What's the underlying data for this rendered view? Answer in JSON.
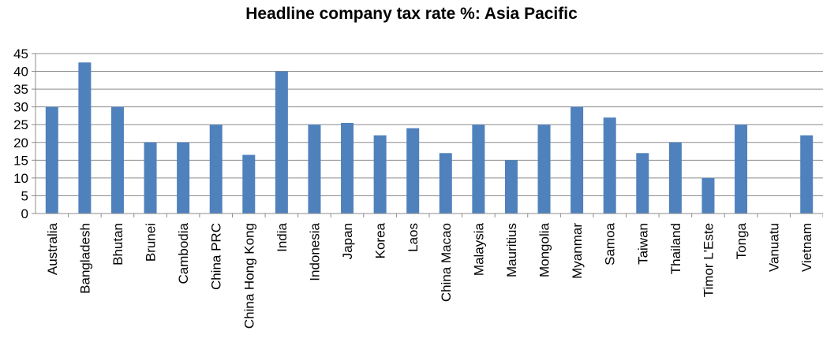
{
  "chart_data": {
    "type": "bar",
    "title": "Headline company tax rate %: Asia Pacific",
    "xlabel": "",
    "ylabel": "",
    "ylim": [
      0,
      45
    ],
    "yticks": [
      0,
      5,
      10,
      15,
      20,
      25,
      30,
      35,
      40,
      45
    ],
    "grid": true,
    "legend": "none",
    "bar_color": "#4f81bd",
    "categories": [
      "Australia",
      "Bangladesh",
      "Bhutan",
      "Brunei",
      "Cambodia",
      "China PRC",
      "China Hong Kong",
      "India",
      "Indonesia",
      "Japan",
      "Korea",
      "Laos",
      "China Macao",
      "Malaysia",
      "Mauritius",
      "Mongolia",
      "Myanmar",
      "Samoa",
      "Taiwan",
      "Thailand",
      "Timor L'Este",
      "Tonga",
      "Vanuatu",
      "Vietnam"
    ],
    "values": [
      30,
      42.5,
      30,
      20,
      20,
      25,
      16.5,
      40,
      25,
      25.5,
      22,
      24,
      17,
      25,
      15,
      25,
      30,
      27,
      17,
      20,
      10,
      25,
      0,
      22
    ]
  }
}
